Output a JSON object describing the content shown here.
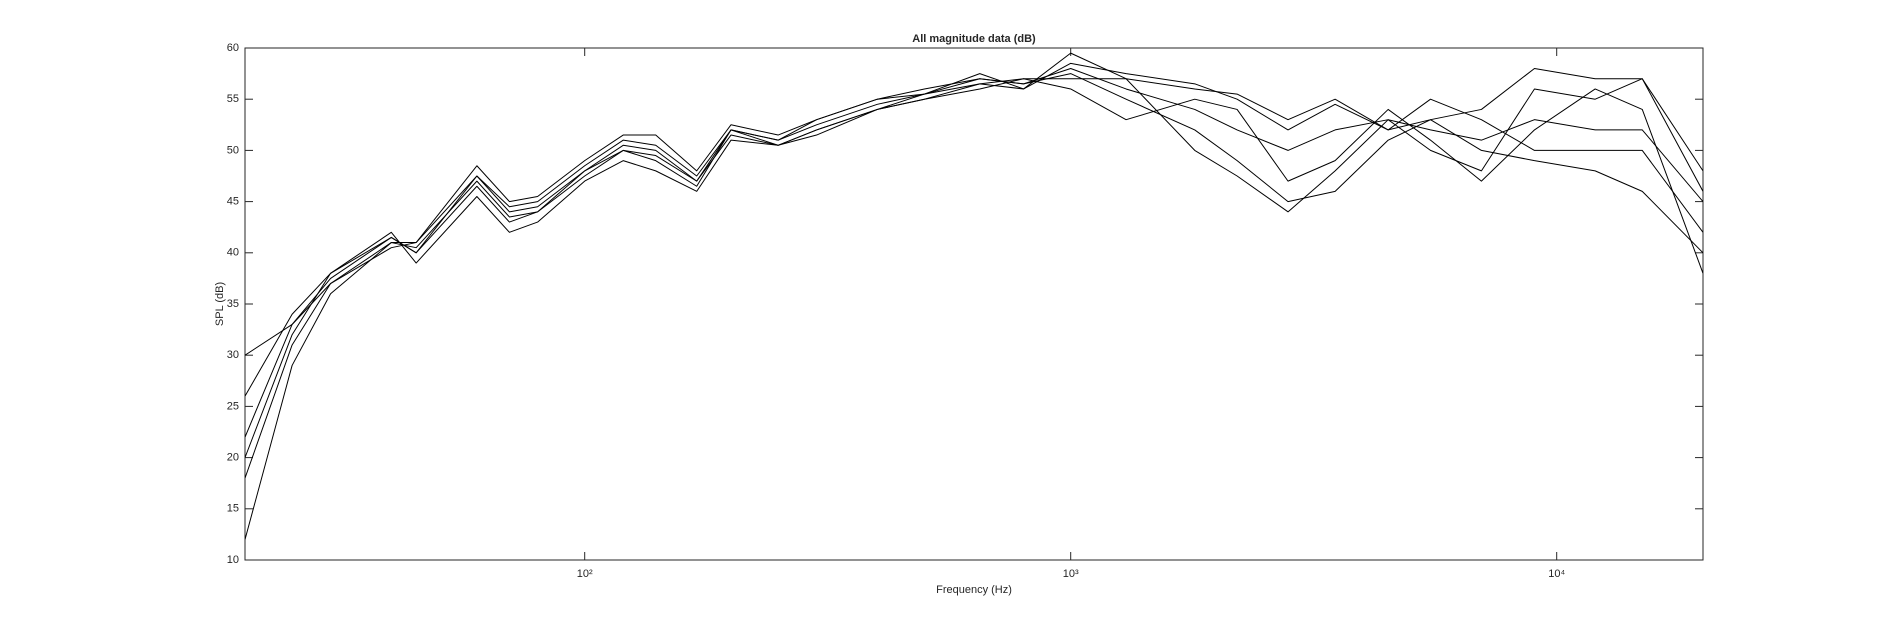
{
  "chart_data": {
    "type": "line",
    "title": "All magnitude data (dB)",
    "x_label": "Frequency (Hz)",
    "y_label": "SPL (dB)",
    "x": [
      20,
      25,
      30,
      40,
      45,
      60,
      70,
      80,
      100,
      120,
      140,
      170,
      200,
      250,
      300,
      400,
      500,
      650,
      800,
      1000,
      1300,
      1800,
      2200,
      2800,
      3500,
      4500,
      5500,
      7000,
      9000,
      12000,
      15000,
      20000
    ],
    "x_scale": "log",
    "xlim": [
      20,
      20000
    ],
    "xticks": [
      {
        "value": 100,
        "label": "10²"
      },
      {
        "value": 1000,
        "label": "10³"
      },
      {
        "value": 10000,
        "label": "10⁴"
      }
    ],
    "ylim": [
      10,
      60
    ],
    "yticks": [
      10,
      15,
      20,
      25,
      30,
      35,
      40,
      45,
      50,
      55,
      60
    ],
    "series": [
      {
        "color": "#000000",
        "values": [
          22,
          33,
          37.5,
          41.5,
          40,
          47.5,
          44,
          44.5,
          48,
          50.5,
          50,
          47,
          52,
          51,
          52.5,
          54.5,
          55.5,
          57,
          56.5,
          58,
          56,
          54,
          52,
          50,
          52,
          53,
          52,
          51,
          53,
          52,
          52,
          45
        ]
      },
      {
        "color": "#000000",
        "values": [
          18,
          31,
          37,
          41,
          41,
          48.5,
          45,
          45.5,
          49,
          51.5,
          51.5,
          48,
          52.5,
          51.5,
          53,
          55,
          55.5,
          57.5,
          56,
          59.5,
          57,
          50,
          47.5,
          44,
          48,
          53,
          50,
          48,
          56,
          55,
          57,
          48
        ]
      },
      {
        "color": "#000000",
        "values": [
          26,
          34,
          38,
          42,
          39,
          45.5,
          42,
          43,
          47,
          49,
          48,
          46,
          51,
          50.5,
          51.5,
          54,
          55,
          56,
          57,
          57,
          57,
          56,
          55.5,
          53,
          55,
          52,
          55,
          53,
          50,
          50,
          50,
          42
        ]
      },
      {
        "color": "#000000",
        "values": [
          12,
          29,
          36,
          41,
          40.5,
          47,
          43.5,
          44,
          48,
          50,
          49.5,
          47,
          51.5,
          50.5,
          52,
          54,
          55.5,
          56.5,
          57,
          56,
          53,
          55,
          54,
          47,
          49,
          54,
          51,
          47,
          52,
          56,
          54,
          38
        ]
      },
      {
        "color": "#000000",
        "values": [
          30,
          33,
          37,
          40.5,
          41,
          47.5,
          44.5,
          45,
          48.5,
          51,
          50.5,
          47.5,
          52,
          51,
          53,
          55,
          56,
          57,
          56.5,
          57.5,
          55,
          52,
          49,
          45,
          46,
          51,
          53,
          54,
          58,
          57,
          57,
          46
        ]
      },
      {
        "color": "#000000",
        "values": [
          20,
          32,
          38,
          41.5,
          40,
          46.5,
          43,
          44,
          47.5,
          50,
          49,
          46.5,
          52,
          50.5,
          52,
          54,
          55,
          56.5,
          56,
          58.5,
          57.5,
          56.5,
          55,
          52,
          54.5,
          52,
          53,
          50,
          49,
          48,
          46,
          40
        ]
      }
    ]
  }
}
